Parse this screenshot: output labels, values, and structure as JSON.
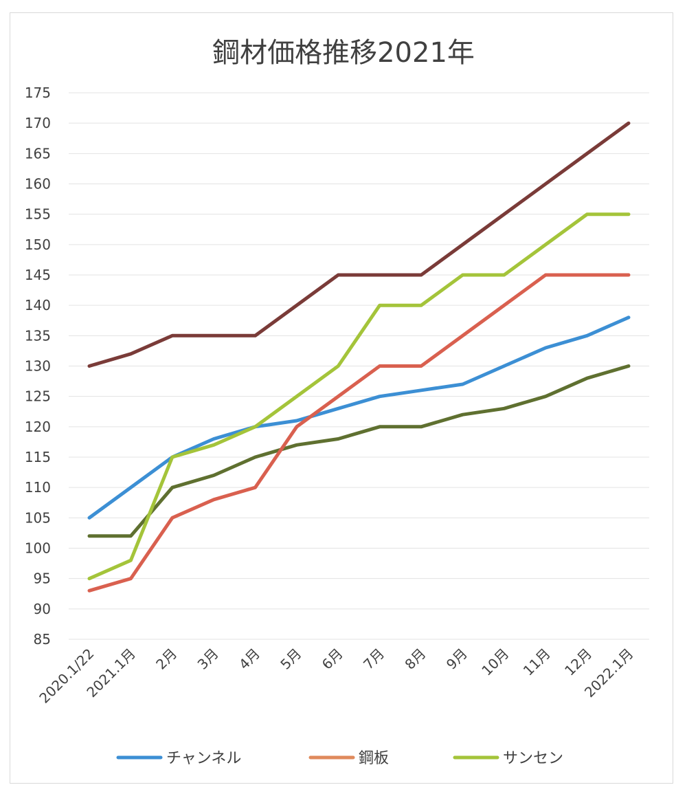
{
  "chart_data": {
    "type": "line",
    "title": "鋼材価格推移2021年",
    "xlabel": "",
    "ylabel": "",
    "categories": [
      "2020.1/22",
      "2021.1月",
      "2月",
      "3月",
      "4月",
      "5月",
      "6月",
      "7月",
      "8月",
      "9月",
      "10月",
      "11月",
      "12月",
      "2022.1月"
    ],
    "ylim": [
      85,
      175
    ],
    "yticks": [
      85,
      90,
      95,
      100,
      105,
      110,
      115,
      120,
      125,
      130,
      135,
      140,
      145,
      150,
      155,
      160,
      165,
      170,
      175
    ],
    "grid": true,
    "legend_position": "bottom",
    "series": [
      {
        "key": "channel",
        "name": "チャンネル",
        "color": "#3c8fd4",
        "in_legend": true,
        "values": [
          105,
          110,
          115,
          118,
          120,
          121,
          123,
          125,
          126,
          127,
          130,
          133,
          135,
          138
        ]
      },
      {
        "key": "plate",
        "name": "鋼板",
        "color": "#d9604f",
        "legend_color": "#e08a5c",
        "in_legend": true,
        "values": [
          93,
          95,
          105,
          108,
          110,
          120,
          125,
          130,
          130,
          135,
          140,
          145,
          145,
          145
        ]
      },
      {
        "key": "sansen",
        "name": "サンセン",
        "color": "#a4c43a",
        "in_legend": true,
        "values": [
          95,
          98,
          115,
          117,
          120,
          125,
          130,
          140,
          140,
          145,
          145,
          150,
          155,
          155
        ]
      },
      {
        "key": "series4",
        "color": "#7a3b38",
        "in_legend": false,
        "values": [
          130,
          132,
          135,
          135,
          135,
          140,
          145,
          145,
          145,
          150,
          155,
          160,
          165,
          170
        ]
      },
      {
        "key": "series5",
        "color": "#5f7030",
        "in_legend": false,
        "values": [
          102,
          102,
          110,
          112,
          115,
          117,
          118,
          120,
          120,
          122,
          123,
          125,
          128,
          130
        ]
      }
    ]
  }
}
